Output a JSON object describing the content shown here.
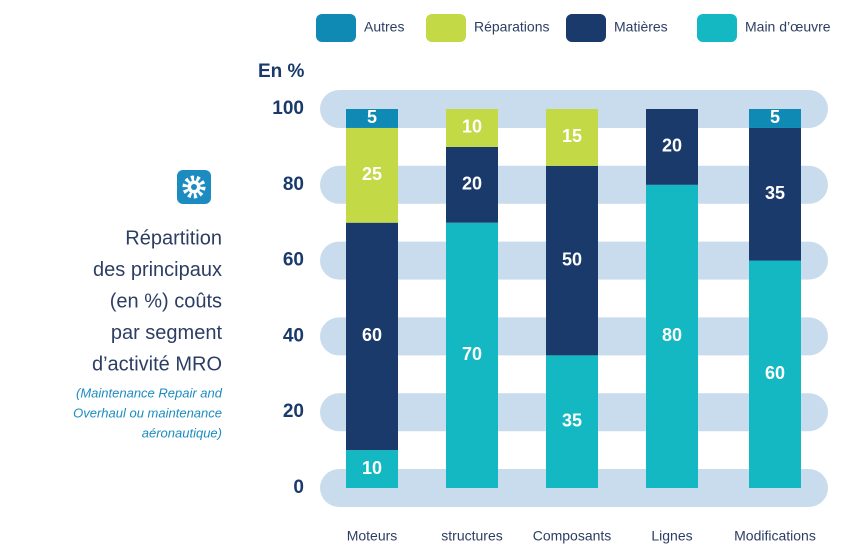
{
  "chart_data": {
    "type": "stacked_bar",
    "title_lines": [
      "Répartition",
      "des principaux",
      "(en %) coûts",
      "par segment",
      "d’activité MRO"
    ],
    "subtitle_lines": [
      "(Maintenance Repair and",
      "Overhaul ou maintenance",
      "aéronautique)"
    ],
    "y_label": "En %",
    "categories": [
      "Moteurs",
      "structures",
      "Composants",
      "Lignes",
      "Modifications"
    ],
    "series": [
      {
        "name": "Main d’œuvre",
        "color": "#13b8c3",
        "values": [
          10,
          70,
          35,
          80,
          60
        ]
      },
      {
        "name": "Matières",
        "color": "#1a3a6b",
        "values": [
          60,
          20,
          50,
          20,
          35
        ]
      },
      {
        "name": "Réparations",
        "color": "#c3d945",
        "values": [
          25,
          10,
          15,
          null,
          null
        ]
      },
      {
        "name": "Autres",
        "color": "#0e8ab5",
        "values": [
          5,
          null,
          null,
          null,
          5
        ]
      }
    ],
    "ylim": [
      0,
      100
    ],
    "yticks": [
      0,
      20,
      40,
      60,
      80,
      100
    ],
    "grid": true
  }
}
